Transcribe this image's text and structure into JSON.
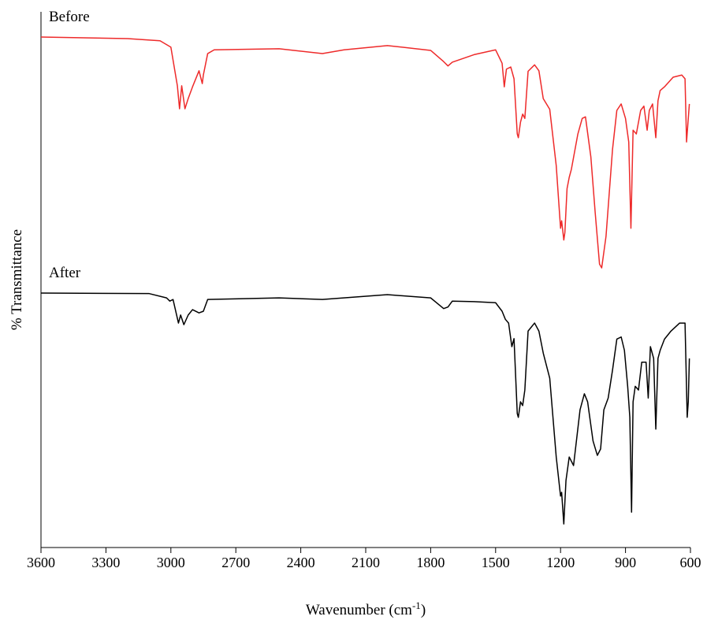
{
  "chart_data": {
    "type": "line",
    "x_label": [
      "Wavenumber (cm",
      "-1",
      ")"
    ],
    "y_label": "% Transmittance",
    "xlim": [
      3600,
      600
    ],
    "ylim": [
      0,
      100
    ],
    "xticks": [
      3600,
      3300,
      3000,
      2700,
      2400,
      2100,
      1800,
      1500,
      1200,
      900,
      600
    ],
    "series": [
      {
        "name": "Before",
        "color": "#ee2a2a",
        "x": [
          3600,
          3200,
          3050,
          3000,
          2970,
          2960,
          2950,
          2935,
          2920,
          2900,
          2870,
          2855,
          2850,
          2830,
          2800,
          2500,
          2300,
          2200,
          2000,
          1800,
          1740,
          1720,
          1700,
          1600,
          1500,
          1470,
          1460,
          1450,
          1430,
          1415,
          1400,
          1395,
          1385,
          1375,
          1365,
          1350,
          1320,
          1300,
          1280,
          1250,
          1220,
          1200,
          1195,
          1185,
          1180,
          1170,
          1160,
          1150,
          1120,
          1100,
          1085,
          1060,
          1040,
          1020,
          1010,
          990,
          960,
          940,
          920,
          900,
          885,
          875,
          865,
          850,
          830,
          815,
          800,
          790,
          775,
          760,
          750,
          740,
          720,
          680,
          640,
          625,
          618,
          610,
          605
        ],
        "values": [
          95.3,
          95.0,
          94.6,
          93.4,
          86.2,
          81.9,
          86.2,
          81.9,
          83.8,
          86.0,
          89.0,
          86.6,
          88.2,
          92.2,
          92.9,
          93.1,
          92.2,
          92.9,
          93.7,
          92.8,
          90.7,
          89.9,
          90.6,
          92.0,
          92.9,
          90.4,
          86.0,
          89.3,
          89.7,
          87.5,
          77.2,
          76.5,
          79.4,
          80.9,
          80.1,
          88.9,
          90.1,
          89.0,
          83.8,
          81.8,
          71.3,
          59.6,
          61.0,
          57.4,
          58.8,
          67.0,
          69.1,
          70.6,
          77.2,
          80.1,
          80.4,
          72.9,
          62.5,
          52.9,
          52.2,
          58.1,
          74.3,
          81.6,
          82.8,
          80.1,
          75.7,
          59.6,
          77.9,
          77.2,
          81.6,
          82.4,
          77.9,
          81.6,
          82.8,
          76.5,
          83.4,
          85.3,
          86.0,
          87.8,
          88.2,
          87.5,
          75.7,
          80.1,
          82.8
        ]
      },
      {
        "name": "After",
        "color": "#000000",
        "x": [
          3600,
          3100,
          3020,
          3005,
          2990,
          2965,
          2955,
          2940,
          2920,
          2900,
          2870,
          2850,
          2830,
          2500,
          2300,
          2000,
          1800,
          1740,
          1720,
          1700,
          1600,
          1500,
          1470,
          1455,
          1440,
          1425,
          1415,
          1400,
          1395,
          1385,
          1375,
          1365,
          1350,
          1320,
          1300,
          1280,
          1250,
          1220,
          1200,
          1195,
          1185,
          1175,
          1160,
          1140,
          1110,
          1090,
          1075,
          1050,
          1030,
          1015,
          1000,
          980,
          960,
          940,
          920,
          905,
          890,
          880,
          872,
          865,
          855,
          840,
          825,
          805,
          795,
          785,
          770,
          760,
          750,
          740,
          720,
          690,
          650,
          625,
          615,
          610,
          605
        ],
        "values": [
          47.5,
          47.4,
          46.6,
          46.0,
          46.3,
          41.9,
          43.4,
          41.6,
          43.4,
          44.4,
          43.8,
          44.1,
          46.3,
          46.6,
          46.3,
          47.2,
          46.6,
          44.6,
          44.9,
          46.0,
          45.9,
          45.7,
          44.1,
          42.6,
          41.9,
          37.5,
          39.0,
          25.0,
          24.3,
          27.2,
          26.5,
          29.4,
          40.4,
          41.9,
          40.4,
          36.3,
          31.6,
          16.9,
          9.6,
          10.3,
          4.4,
          12.5,
          16.9,
          15.3,
          25.7,
          28.7,
          27.2,
          19.9,
          17.2,
          18.4,
          25.7,
          27.9,
          33.1,
          38.9,
          39.3,
          36.8,
          30.1,
          24.3,
          6.6,
          27.2,
          30.1,
          29.4,
          34.6,
          34.6,
          27.9,
          37.5,
          35.3,
          22.1,
          35.3,
          36.8,
          38.9,
          40.4,
          41.9,
          41.9,
          24.3,
          27.2,
          35.3
        ]
      }
    ]
  }
}
